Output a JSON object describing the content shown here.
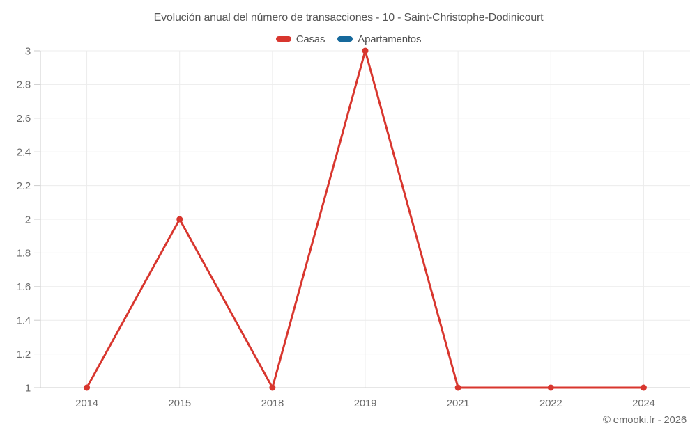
{
  "header": {
    "title": "Evolución anual del número de transacciones - 10 - Saint-Christophe-Dodinicourt"
  },
  "legend": {
    "items": [
      {
        "label": "Casas",
        "color": "#d8362e"
      },
      {
        "label": "Apartamentos",
        "color": "#16699c"
      }
    ]
  },
  "chart_data": {
    "type": "line",
    "title": "Evolución anual del número de transacciones - 10 - Saint-Christophe-Dodinicourt",
    "categories": [
      "2014",
      "2015",
      "2018",
      "2019",
      "2021",
      "2022",
      "2024"
    ],
    "series": [
      {
        "name": "Casas",
        "color": "#d8362e",
        "values": [
          1,
          2,
          1,
          3,
          1,
          1,
          1
        ]
      },
      {
        "name": "Apartamentos",
        "color": "#16699c",
        "values": [
          null,
          null,
          null,
          null,
          null,
          null,
          null
        ]
      }
    ],
    "ylim": [
      1,
      3
    ],
    "yticks": [
      {
        "v": 1,
        "label": "1"
      },
      {
        "v": 1.2,
        "label": "1.2"
      },
      {
        "v": 1.4,
        "label": "1.4"
      },
      {
        "v": 1.6,
        "label": "1.6"
      },
      {
        "v": 1.8,
        "label": "1.8"
      },
      {
        "v": 2,
        "label": "2"
      },
      {
        "v": 2.2,
        "label": "2.2"
      },
      {
        "v": 2.4,
        "label": "2.4"
      },
      {
        "v": 2.6,
        "label": "2.6"
      },
      {
        "v": 2.8,
        "label": "2.8"
      },
      {
        "v": 3,
        "label": "3"
      }
    ],
    "grid": true,
    "legend_position": "top",
    "colors": {
      "grid": "#ececec",
      "axis": "#cccccc",
      "labels": "#6b6b6b",
      "title": "#555555"
    }
  },
  "footer": {
    "watermark": "© emooki.fr - 2026"
  }
}
